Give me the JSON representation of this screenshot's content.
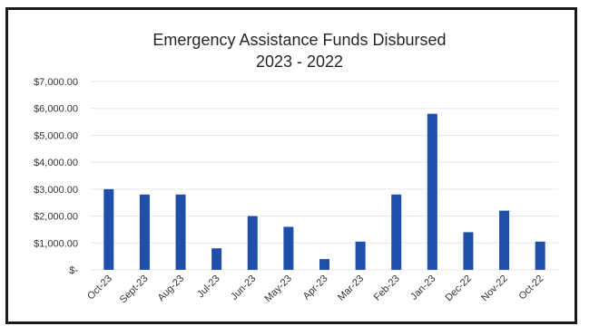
{
  "chart_data": {
    "type": "bar",
    "title": "Emergency Assistance Funds Disbursed",
    "subtitle": "2023 - 2022",
    "xlabel": "",
    "ylabel": "",
    "categories": [
      "Oct-23",
      "Sept-23",
      "Aug-23",
      "Jul-23",
      "Jun-23",
      "May-23",
      "Apr-23",
      "Mar-23",
      "Feb-23",
      "Jan-23",
      "Dec-22",
      "Nov-22",
      "Oct-22"
    ],
    "values": [
      3000,
      2800,
      2800,
      800,
      2000,
      1600,
      400,
      1050,
      2800,
      5800,
      1400,
      2200,
      1050
    ],
    "ylim": [
      0,
      7000
    ],
    "yticks": [
      0,
      1000,
      2000,
      3000,
      4000,
      5000,
      6000,
      7000
    ],
    "ytick_labels": [
      "$-",
      "$1,000.00",
      "$2,000.00",
      "$3,000.00",
      "$4,000.00",
      "$5,000.00",
      "$6,000.00",
      "$7,000.00"
    ],
    "grid": true,
    "legend": "none",
    "bar_color": "#1f4fa8",
    "grid_color": "#e6e6e6"
  }
}
